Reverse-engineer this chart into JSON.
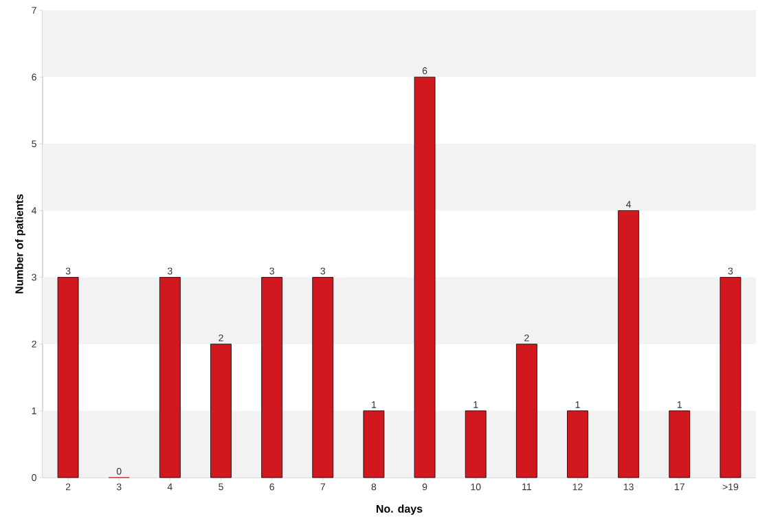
{
  "chart_data": {
    "type": "bar",
    "xlabel": "No. days",
    "ylabel": "Number of patients",
    "categories": [
      "2",
      "3",
      "4",
      "5",
      "6",
      "7",
      "8",
      "9",
      "10",
      "11",
      "12",
      "13",
      "17",
      ">19"
    ],
    "values": [
      3,
      0,
      3,
      2,
      3,
      3,
      1,
      6,
      1,
      2,
      1,
      4,
      1,
      3
    ],
    "color": "#d0181e",
    "ylim": [
      0,
      7
    ],
    "yticks": [
      0,
      1,
      2,
      3,
      4,
      5,
      6,
      7
    ],
    "data_labels": true,
    "bands": [
      {
        "axis": "y",
        "from": 0,
        "to": 1,
        "color": "#f2f2f2"
      },
      {
        "axis": "y",
        "from": 2,
        "to": 3,
        "color": "#f2f2f2"
      },
      {
        "axis": "y",
        "from": 4,
        "to": 5,
        "color": "#f2f2f2"
      },
      {
        "axis": "y",
        "from": 6,
        "to": 7,
        "color": "#f2f2f2"
      }
    ]
  }
}
